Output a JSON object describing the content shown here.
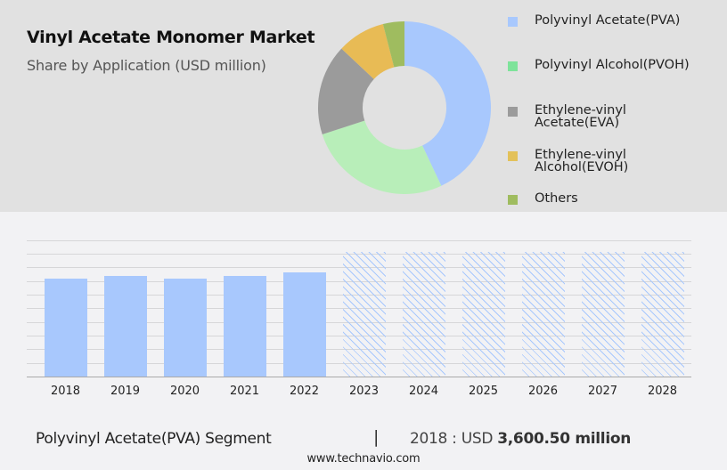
{
  "header": {
    "title": "Vinyl Acetate Monomer Market",
    "subtitle": "Share by Application (USD million)"
  },
  "legend": [
    {
      "label": "Polyvinyl Acetate(PVA)",
      "color": "#a8c8fd"
    },
    {
      "label": "Polyvinyl Alcohol(PVOH)",
      "color": "#7ee39a"
    },
    {
      "label": "Ethylene-vinyl Acetate(EVA)",
      "color": "#9b9b9b"
    },
    {
      "label": "Ethylene-vinyl Alcohol(EVOH)",
      "color": "#e3c15a"
    },
    {
      "label": "Others",
      "color": "#9fbc5f"
    }
  ],
  "footer": {
    "segment": "Polyvinyl Acetate(PVA) Segment",
    "separator": "|",
    "year_prefix": "2018 : USD ",
    "value": "3,600.50 million",
    "url": "www.technavio.com"
  },
  "chart_data": [
    {
      "type": "pie",
      "title": "Vinyl Acetate Monomer Market",
      "subtitle": "Share by Application (USD million)",
      "donut": true,
      "labels": [
        "Polyvinyl Acetate(PVA)",
        "Polyvinyl Alcohol(PVOH)",
        "Ethylene-vinyl Acetate(EVA)",
        "Ethylene-vinyl Alcohol(EVOH)",
        "Others"
      ],
      "values": [
        43,
        27,
        17,
        9,
        4
      ],
      "colors": [
        "#a8c8fd",
        "#b8eeb9",
        "#9b9b9b",
        "#e8bb55",
        "#9fbc5f"
      ],
      "legend_position": "right"
    },
    {
      "type": "bar",
      "title": "Polyvinyl Acetate(PVA) Segment",
      "categories": [
        "2018",
        "2019",
        "2020",
        "2021",
        "2022",
        "2023",
        "2024",
        "2025",
        "2026",
        "2027",
        "2028"
      ],
      "values": [
        3600.5,
        3700,
        3600,
        3700,
        3830,
        null,
        null,
        null,
        null,
        null,
        null
      ],
      "forecast_from": "2023",
      "forecast_style": "hatched",
      "xlabel": "",
      "ylabel": "",
      "ylim": [
        0,
        5000
      ],
      "grid": true,
      "annotation": "2018 : USD 3,600.50 million"
    }
  ]
}
